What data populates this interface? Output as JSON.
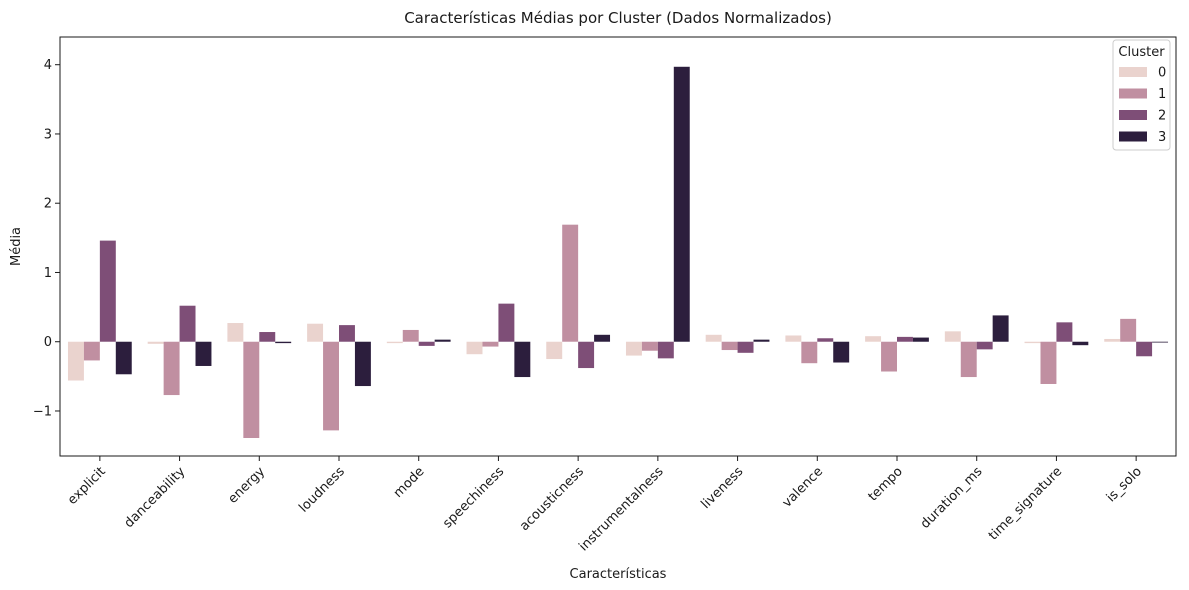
{
  "chart_data": {
    "type": "bar",
    "title": "Características Médias por Cluster (Dados Normalizados)",
    "xlabel": "Características",
    "ylabel": "Média",
    "ylim": [
      -1.65,
      4.4
    ],
    "yticks": [
      -1,
      0,
      1,
      2,
      3,
      4
    ],
    "ytick_labels": [
      "−1",
      "0",
      "1",
      "2",
      "3",
      "4"
    ],
    "grid": false,
    "legend_position": "top-right",
    "legend_title": "Cluster",
    "categories": [
      "explicit",
      "danceability",
      "energy",
      "loudness",
      "mode",
      "speechiness",
      "acousticness",
      "instrumentalness",
      "liveness",
      "valence",
      "tempo",
      "duration_ms",
      "time_signature",
      "is_solo"
    ],
    "series": [
      {
        "name": "0",
        "color": "#ead3ce",
        "values": [
          -0.56,
          -0.03,
          0.27,
          0.26,
          -0.02,
          -0.18,
          -0.25,
          -0.2,
          0.1,
          0.09,
          0.08,
          0.15,
          -0.02,
          0.04
        ]
      },
      {
        "name": "1",
        "color": "#c08fa1",
        "values": [
          -0.27,
          -0.77,
          -1.39,
          -1.28,
          0.17,
          -0.07,
          1.69,
          -0.13,
          -0.12,
          -0.31,
          -0.43,
          -0.51,
          -0.61,
          0.33
        ]
      },
      {
        "name": "2",
        "color": "#7e4e77",
        "values": [
          1.46,
          0.52,
          0.14,
          0.24,
          -0.06,
          0.55,
          -0.38,
          -0.24,
          -0.16,
          0.05,
          0.07,
          -0.11,
          0.28,
          -0.21
        ]
      },
      {
        "name": "3",
        "color": "#2c1e3d",
        "values": [
          -0.47,
          -0.35,
          -0.02,
          -0.64,
          0.03,
          -0.51,
          0.1,
          3.97,
          0.03,
          -0.3,
          0.06,
          0.38,
          -0.05,
          -0.01
        ]
      }
    ]
  }
}
